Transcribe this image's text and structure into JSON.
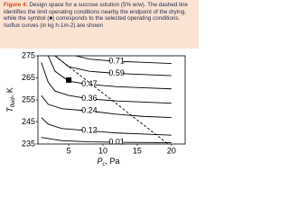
{
  "caption": {
    "label": "Figure 4:",
    "text": "Design space for a sucrose solution (5% w/w). The dashed line identifies the limit operating conditions nearby the endpoint of the drying, while the symbol (■) corresponds to the selected operating conditions. Isoflux curves (in kg h-1m-2) are shown"
  },
  "chart_data": {
    "type": "contour",
    "x_label": {
      "main": "P",
      "sub": "c",
      "unit": ", Pa"
    },
    "y_label": {
      "main": "T",
      "sub": "fluid",
      "unit": ", K"
    },
    "xlim": [
      0.5,
      22
    ],
    "xticks": [
      5,
      10,
      15,
      20
    ],
    "ylim": [
      235,
      275
    ],
    "yticks": [
      235,
      245,
      255,
      265,
      275
    ],
    "color": "#000000",
    "series": [
      {
        "name": "0.71",
        "x": [
          6,
          8,
          12,
          16,
          20
        ],
        "values": [
          275,
          273.5,
          272.5,
          272,
          271.5
        ]
      },
      {
        "name": "0.59",
        "x": [
          3,
          5,
          8,
          12,
          16,
          20
        ],
        "values": [
          275,
          270,
          268,
          267,
          266.5,
          266
        ]
      },
      {
        "name": "0.47",
        "x": [
          2,
          3,
          5,
          8,
          12,
          16,
          20
        ],
        "values": [
          275,
          268,
          263.5,
          262,
          261,
          260.5,
          260
        ]
      },
      {
        "name": "0.36",
        "x": [
          1,
          2,
          3,
          5,
          8,
          12,
          16,
          20
        ],
        "values": [
          272,
          263,
          259,
          257,
          255.5,
          254.5,
          254,
          253.5
        ]
      },
      {
        "name": "0.24",
        "x": [
          1,
          2,
          4,
          8,
          12,
          16,
          20
        ],
        "values": [
          257,
          253,
          251,
          250,
          248.5,
          247.5,
          247
        ]
      },
      {
        "name": "0.12",
        "x": [
          1,
          2,
          4,
          8,
          12,
          16,
          20
        ],
        "values": [
          247,
          244,
          242,
          241,
          240,
          239.5,
          239
        ]
      },
      {
        "name": "0.01",
        "x": [
          1,
          4,
          8,
          12,
          16,
          20
        ],
        "values": [
          238,
          236.5,
          236,
          235.8,
          235.7,
          235.6
        ]
      }
    ],
    "limit_line": {
      "x": [
        3,
        19.5
      ],
      "values": [
        275,
        235
      ],
      "style": "dashed"
    },
    "selected_point": {
      "x": 5,
      "y": 264
    }
  }
}
